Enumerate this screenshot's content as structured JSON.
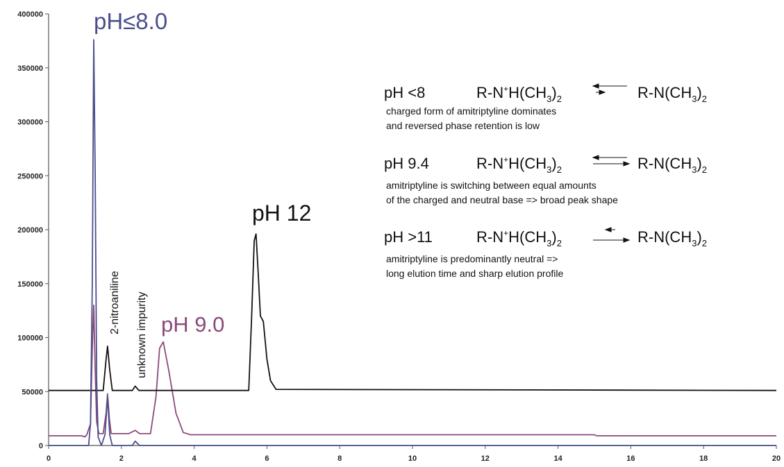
{
  "colors": {
    "ph8": "#4a4f8c",
    "ph9": "#8a4a7a",
    "ph12": "#111111",
    "axis": "#555555"
  },
  "chart_data": {
    "type": "line",
    "xlim": [
      0,
      20
    ],
    "ylim": [
      0,
      400000
    ],
    "x_ticks": [
      "0",
      "2",
      "4",
      "6",
      "8",
      "10",
      "12",
      "14",
      "16",
      "18",
      "20"
    ],
    "y_ticks": [
      "0",
      "50000",
      "100000",
      "150000",
      "200000",
      "250000",
      "300000",
      "350000",
      "400000"
    ],
    "grid": false,
    "series": [
      {
        "name": "pH≤8.0",
        "color": "#4a4f8c",
        "points": [
          [
            0,
            0
          ],
          [
            1.1,
            0
          ],
          [
            1.15,
            20000
          ],
          [
            1.2,
            150000
          ],
          [
            1.24,
            376000
          ],
          [
            1.28,
            250000
          ],
          [
            1.32,
            60000
          ],
          [
            1.36,
            8000
          ],
          [
            1.45,
            0
          ],
          [
            1.55,
            10000
          ],
          [
            1.62,
            45000
          ],
          [
            1.68,
            10000
          ],
          [
            1.75,
            0
          ],
          [
            2.3,
            0
          ],
          [
            2.38,
            4000
          ],
          [
            2.5,
            0
          ],
          [
            20,
            0
          ]
        ]
      },
      {
        "name": "pH 9.0",
        "color": "#8a4a7a",
        "points": [
          [
            0,
            9000
          ],
          [
            0.9,
            9000
          ],
          [
            1.0,
            8000
          ],
          [
            1.05,
            10000
          ],
          [
            1.15,
            20000
          ],
          [
            1.2,
            90000
          ],
          [
            1.24,
            130000
          ],
          [
            1.28,
            70000
          ],
          [
            1.32,
            22000
          ],
          [
            1.38,
            11000
          ],
          [
            1.5,
            11000
          ],
          [
            1.58,
            30000
          ],
          [
            1.62,
            48000
          ],
          [
            1.67,
            25000
          ],
          [
            1.72,
            11000
          ],
          [
            2.2,
            11000
          ],
          [
            2.38,
            14000
          ],
          [
            2.5,
            11000
          ],
          [
            2.8,
            11000
          ],
          [
            2.95,
            45000
          ],
          [
            3.05,
            90000
          ],
          [
            3.15,
            96000
          ],
          [
            3.3,
            70000
          ],
          [
            3.5,
            30000
          ],
          [
            3.7,
            12000
          ],
          [
            3.9,
            10000
          ],
          [
            15.0,
            10000
          ],
          [
            15.05,
            9000
          ],
          [
            20,
            9000
          ]
        ]
      },
      {
        "name": "pH 12",
        "color": "#111111",
        "points": [
          [
            0,
            51000
          ],
          [
            1.5,
            51000
          ],
          [
            1.58,
            80000
          ],
          [
            1.62,
            92000
          ],
          [
            1.68,
            70000
          ],
          [
            1.75,
            51000
          ],
          [
            2.3,
            51000
          ],
          [
            2.38,
            55000
          ],
          [
            2.48,
            51000
          ],
          [
            5.5,
            51000
          ],
          [
            5.58,
            120000
          ],
          [
            5.65,
            190000
          ],
          [
            5.7,
            196000
          ],
          [
            5.76,
            160000
          ],
          [
            5.82,
            120000
          ],
          [
            5.9,
            115000
          ],
          [
            6.0,
            80000
          ],
          [
            6.1,
            60000
          ],
          [
            6.25,
            52000
          ],
          [
            20,
            51000
          ]
        ]
      }
    ],
    "annotations": {
      "ph8_label": "pH≤8.0",
      "ph9_label": "pH 9.0",
      "ph12_label": "pH 12",
      "nitroaniline": "2-nitroaniline",
      "impurity": "unknown impurity"
    },
    "equations": [
      {
        "ph": "pH <8",
        "left_a": "R-N",
        "left_sup": "+",
        "left_b": "H(CH",
        "left_sub": "3",
        "left_c": ")",
        "left_sub2": "2",
        "right_a": "R-N(CH",
        "right_sub": "3",
        "right_b": ")",
        "right_sub2": "2",
        "note1": "charged form of amitriptyline dominates",
        "note2": "and reversed phase retention is low"
      },
      {
        "ph": "pH 9.4",
        "left_a": "R-N",
        "left_sup": "+",
        "left_b": "H(CH",
        "left_sub": "3",
        "left_c": ")",
        "left_sub2": "2",
        "right_a": "R-N(CH",
        "right_sub": "3",
        "right_b": ")",
        "right_sub2": "2",
        "note1": "amitriptyline is switching between equal amounts",
        "note2": "of the charged and neutral base => broad peak shape"
      },
      {
        "ph": "pH >11",
        "left_a": "R-N",
        "left_sup": "+",
        "left_b": "H(CH",
        "left_sub": "3",
        "left_c": ")",
        "left_sub2": "2",
        "right_a": "R-N(CH",
        "right_sub": "3",
        "right_b": ")",
        "right_sub2": "2",
        "note1": "amitriptyline is predominantly neutral =>",
        "note2": "long elution time and sharp elution profile"
      }
    ]
  }
}
